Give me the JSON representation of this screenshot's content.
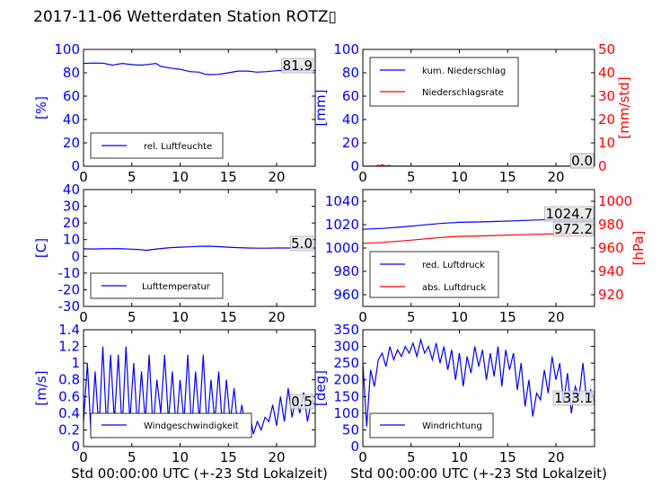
{
  "figure": {
    "title": "2017-11-06 Wetterdaten Station ROTZ▯"
  },
  "chart_data": [
    {
      "type": "line",
      "ylabel": "[%]",
      "xlim": [
        0,
        24
      ],
      "ylim": [
        0,
        100
      ],
      "xticks": [
        0,
        5,
        10,
        15,
        20
      ],
      "yticks": [
        0,
        20,
        40,
        60,
        80,
        100
      ],
      "legend": "lower-left",
      "series": [
        {
          "name": "rel. Luftfeuchte",
          "color": "#0000ff",
          "x": [
            0,
            1,
            2,
            3,
            4,
            5,
            6,
            7,
            7.5,
            8,
            9,
            10,
            11,
            12,
            12.5,
            13,
            14,
            15,
            16,
            17,
            18,
            19,
            20,
            21,
            22,
            23,
            24
          ],
          "y": [
            88,
            88.3,
            88.2,
            86.5,
            88,
            87,
            86.5,
            87.5,
            88,
            85.5,
            84,
            83,
            81,
            80.5,
            79,
            78.5,
            78.7,
            80,
            81.5,
            81.5,
            80.5,
            81,
            81.8,
            82,
            81.9,
            82,
            81.9
          ]
        }
      ],
      "annotations": [
        {
          "text": "81.9"
        }
      ]
    },
    {
      "type": "line",
      "ylabel": "[mm]",
      "ylabel2": "[mm/std]",
      "xlim": [
        0,
        24
      ],
      "ylim": [
        0,
        100
      ],
      "ylim2": [
        0,
        50
      ],
      "xticks": [
        0,
        5,
        10,
        15,
        20
      ],
      "yticks": [
        0,
        20,
        40,
        60,
        80,
        100
      ],
      "yticks2": [
        0,
        10,
        20,
        30,
        40,
        50
      ],
      "legend": "upper-left",
      "series": [
        {
          "name": "kum. Niederschlag",
          "color": "#0000ff",
          "axis": "left",
          "x": [
            0,
            24
          ],
          "y": [
            0,
            0
          ]
        },
        {
          "name": "Niederschlagsrate",
          "color": "#ff0000",
          "axis": "right",
          "x": [
            0,
            1.4,
            1.6,
            1.8,
            2.0,
            2.2,
            2.4,
            2.7,
            2.9,
            3.1,
            24
          ],
          "y": [
            0,
            0,
            0.5,
            0,
            0.7,
            0.3,
            0,
            0.4,
            0,
            0,
            0
          ]
        }
      ],
      "annotations": [
        {
          "text": "0.0"
        },
        {
          "text": "0.0"
        }
      ]
    },
    {
      "type": "line",
      "ylabel": "[C]",
      "xlim": [
        0,
        24
      ],
      "ylim": [
        -30,
        40
      ],
      "xticks": [
        0,
        5,
        10,
        15,
        20
      ],
      "yticks": [
        -30,
        -20,
        -10,
        0,
        10,
        20,
        30,
        40
      ],
      "legend": "lower-left",
      "series": [
        {
          "name": "Lufttemperatur",
          "color": "#0000ff",
          "x": [
            0,
            1,
            2,
            3,
            4,
            5,
            6,
            6.5,
            7,
            8,
            9,
            10,
            11,
            12,
            13,
            14,
            15,
            16,
            17,
            18,
            19,
            20,
            21,
            22,
            23,
            24
          ],
          "y": [
            4.5,
            4.4,
            4.5,
            4.6,
            4.5,
            4.3,
            4,
            3.6,
            4,
            4.7,
            5.2,
            5.5,
            5.7,
            6.0,
            6.1,
            5.8,
            5.5,
            5.2,
            5.0,
            4.9,
            4.9,
            5.0,
            5.0,
            5.0,
            5.0,
            5.0
          ]
        }
      ],
      "annotations": [
        {
          "text": "5.0"
        }
      ]
    },
    {
      "type": "line",
      "ylabel2": "[hPa]",
      "xlim": [
        0,
        24
      ],
      "ylim": [
        950,
        1050
      ],
      "ylim2": [
        910,
        1010
      ],
      "xticks": [
        0,
        5,
        10,
        15,
        20
      ],
      "yticks": [
        960,
        980,
        1000,
        1020,
        1040
      ],
      "yticks2": [
        920,
        940,
        960,
        980,
        1000
      ],
      "legend": "lower-left",
      "series": [
        {
          "name": "red. Luftdruck",
          "color": "#0000ff",
          "axis": "left",
          "x": [
            0,
            2,
            4,
            6,
            8,
            10,
            12,
            14,
            16,
            18,
            20,
            22,
            24
          ],
          "y": [
            1016,
            1016.8,
            1018,
            1019.5,
            1021,
            1022,
            1022.3,
            1022.8,
            1023.3,
            1024,
            1024.5,
            1024.7,
            1024.7
          ]
        },
        {
          "name": "abs. Luftdruck",
          "color": "#ff0000",
          "axis": "right",
          "x": [
            0,
            2,
            4,
            6,
            8,
            10,
            12,
            14,
            16,
            18,
            20,
            22,
            24
          ],
          "y": [
            964,
            964.8,
            966,
            967.5,
            969,
            970,
            970.3,
            970.8,
            971.3,
            971.8,
            972.1,
            972.2,
            972.2
          ]
        }
      ],
      "annotations": [
        {
          "text": "1024.7"
        },
        {
          "text": "972.2"
        }
      ]
    },
    {
      "type": "line",
      "ylabel": "[m/s]",
      "xlabel": "Std 00:00:00 UTC (+-23 Std Lokalzeit)",
      "xlim": [
        0,
        24
      ],
      "ylim": [
        0,
        1.4
      ],
      "xticks": [
        0,
        5,
        10,
        15,
        20
      ],
      "yticks": [
        0,
        0.2,
        0.4,
        0.6,
        0.8,
        1.0,
        1.2,
        1.4
      ],
      "legend": "lower-left",
      "series": [
        {
          "name": "Windgeschwindigkeit",
          "color": "#0000ff",
          "x": [
            0,
            0.4,
            0.8,
            1.2,
            1.6,
            2.0,
            2.4,
            2.8,
            3.2,
            3.6,
            4.0,
            4.4,
            4.8,
            5.2,
            5.6,
            6.0,
            6.4,
            6.8,
            7.2,
            7.6,
            8.0,
            8.4,
            8.8,
            9.2,
            9.6,
            10.0,
            10.4,
            10.8,
            11.2,
            11.6,
            12.0,
            12.4,
            12.8,
            13.2,
            13.6,
            14.0,
            14.4,
            14.8,
            15.2,
            15.6,
            16.0,
            16.4,
            16.8,
            17.2,
            17.6,
            18.0,
            18.4,
            18.8,
            19.2,
            19.6,
            20.0,
            20.4,
            20.8,
            21.2,
            21.6,
            22.0,
            22.4,
            22.8,
            23.2,
            23.6,
            24.0
          ],
          "y": [
            0.3,
            1.0,
            0.1,
            0.9,
            0.2,
            1.2,
            0.2,
            1.1,
            0.3,
            1.1,
            0.2,
            1.2,
            0.3,
            1.0,
            0.2,
            0.9,
            0.3,
            1.1,
            0.2,
            0.8,
            0.4,
            1.1,
            0.3,
            0.9,
            0.2,
            0.8,
            0.3,
            1.1,
            0.2,
            0.9,
            0.3,
            1.1,
            0.2,
            0.8,
            0.3,
            0.9,
            0.2,
            0.8,
            0.3,
            0.7,
            0.2,
            0.5,
            0.2,
            0.4,
            0.15,
            0.3,
            0.2,
            0.35,
            0.3,
            0.5,
            0.25,
            0.6,
            0.3,
            0.7,
            0.35,
            0.6,
            0.4,
            0.65,
            0.3,
            0.55,
            0.5
          ]
        }
      ],
      "annotations": [
        {
          "text": "0.5"
        }
      ]
    },
    {
      "type": "line",
      "ylabel": "[deg]",
      "xlabel": "Std 00:00:00 UTC (+-23 Std Lokalzeit)",
      "xlim": [
        0,
        24
      ],
      "ylim": [
        0,
        350
      ],
      "xticks": [
        0,
        5,
        10,
        15,
        20
      ],
      "yticks": [
        0,
        50,
        100,
        150,
        200,
        250,
        300,
        350
      ],
      "legend": "lower-left",
      "series": [
        {
          "name": "Windrichtung",
          "color": "#0000ff",
          "x": [
            0,
            0.4,
            0.8,
            1.2,
            1.6,
            2.0,
            2.4,
            2.8,
            3.2,
            3.6,
            4.0,
            4.4,
            4.8,
            5.2,
            5.6,
            6.0,
            6.4,
            6.8,
            7.2,
            7.6,
            8.0,
            8.4,
            8.8,
            9.2,
            9.6,
            10.0,
            10.4,
            10.8,
            11.2,
            11.6,
            12.0,
            12.4,
            12.8,
            13.2,
            13.6,
            14.0,
            14.4,
            14.8,
            15.2,
            15.6,
            16.0,
            16.4,
            16.8,
            17.2,
            17.6,
            18.0,
            18.4,
            18.8,
            19.2,
            19.6,
            20.0,
            20.4,
            20.8,
            21.2,
            21.6,
            22.0,
            22.4,
            22.8,
            23.2,
            23.6,
            24.0
          ],
          "y": [
            250,
            60,
            230,
            180,
            260,
            280,
            240,
            300,
            260,
            290,
            270,
            300,
            280,
            310,
            270,
            320,
            280,
            300,
            260,
            310,
            250,
            300,
            230,
            290,
            200,
            280,
            180,
            270,
            220,
            300,
            240,
            290,
            200,
            280,
            210,
            300,
            180,
            290,
            230,
            280,
            170,
            250,
            120,
            200,
            90,
            160,
            140,
            230,
            160,
            270,
            200,
            250,
            130,
            220,
            100,
            180,
            150,
            250,
            130,
            170,
            133.1
          ]
        }
      ],
      "annotations": [
        {
          "text": "133.1"
        }
      ]
    }
  ]
}
